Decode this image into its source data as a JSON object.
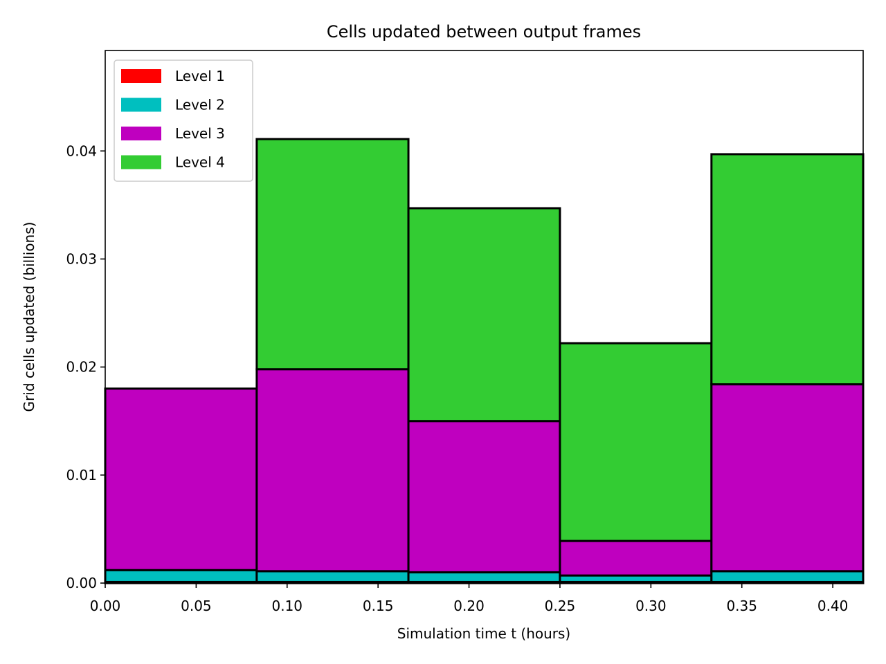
{
  "chart_data": {
    "type": "bar",
    "stacked": true,
    "title": "Cells updated between output frames",
    "xlabel": "Simulation time t (hours)",
    "ylabel": "Grid cells updated (billions)",
    "xlim": [
      0.0,
      0.4167
    ],
    "ylim": [
      0.0,
      0.0493
    ],
    "bin_edges": [
      0.0,
      0.0833,
      0.1667,
      0.25,
      0.3333,
      0.4167
    ],
    "x_ticks": [
      "0.00",
      "0.05",
      "0.10",
      "0.15",
      "0.20",
      "0.25",
      "0.30",
      "0.35",
      "0.40"
    ],
    "y_ticks": [
      "0.00",
      "0.01",
      "0.02",
      "0.03",
      "0.04"
    ],
    "grid": false,
    "legend_position": "top-left",
    "series": [
      {
        "name": "Level 1",
        "color": "#ff0000",
        "values": [
          0.0001,
          0.0001,
          0.0001,
          0.0001,
          0.0001
        ]
      },
      {
        "name": "Level 2",
        "color": "#00bfbf",
        "values": [
          0.0011,
          0.001,
          0.0009,
          0.0006,
          0.001
        ]
      },
      {
        "name": "Level 3",
        "color": "#bf00bf",
        "values": [
          0.0168,
          0.0187,
          0.014,
          0.0032,
          0.0173
        ]
      },
      {
        "name": "Level 4",
        "color": "#33cc33",
        "values": [
          0.0,
          0.0213,
          0.0197,
          0.0183,
          0.0213
        ]
      }
    ]
  }
}
